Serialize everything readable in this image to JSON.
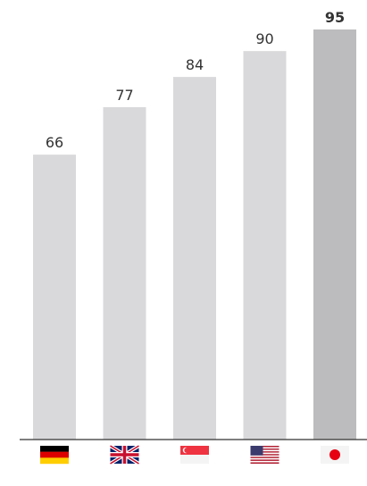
{
  "chart_data": {
    "type": "bar",
    "categories": [
      null,
      null,
      null,
      null,
      null
    ],
    "values": [
      66,
      77,
      84,
      90,
      95
    ],
    "colors": [
      "#d9d9db",
      "#d9d9db",
      "#d9d9db",
      "#d9d9db",
      "#bcbcbe"
    ],
    "ylim": [
      0,
      95
    ]
  }
}
